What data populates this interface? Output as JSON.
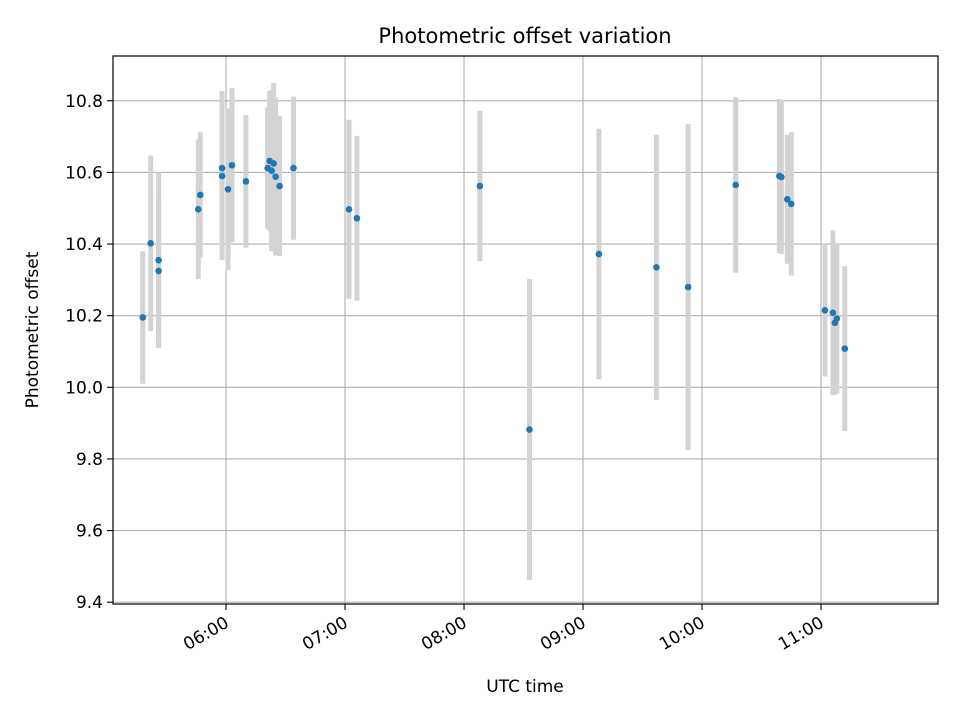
{
  "chart_data": {
    "type": "scatter",
    "title": "Photometric offset variation",
    "xlabel": "UTC time",
    "ylabel": "Photometric offset",
    "x_unit": "UTC time (HH:MM)",
    "xlim": [
      "05:03",
      "11:59"
    ],
    "ylim": [
      9.395,
      10.925
    ],
    "x_ticks": [
      "06:00",
      "07:00",
      "08:00",
      "09:00",
      "10:00",
      "11:00"
    ],
    "y_ticks": [
      "9.4",
      "9.6",
      "9.8",
      "10.0",
      "10.2",
      "10.4",
      "10.6",
      "10.8"
    ],
    "grid": true,
    "marker_color": "#1f77b4",
    "errorbar_color": "#d3d3d3",
    "series": [
      {
        "points": [
          {
            "x": "05:18",
            "y": 10.195,
            "err": 0.185
          },
          {
            "x": "05:22",
            "y": 10.402,
            "err": 0.245
          },
          {
            "x": "05:26",
            "y": 10.355,
            "err": 0.245
          },
          {
            "x": "05:26",
            "y": 10.325,
            "err": 0.21
          },
          {
            "x": "05:46",
            "y": 10.497,
            "err": 0.195
          },
          {
            "x": "05:47",
            "y": 10.537,
            "err": 0.175
          },
          {
            "x": "05:58",
            "y": 10.59,
            "err": 0.235
          },
          {
            "x": "05:58",
            "y": 10.612,
            "err": 0.215
          },
          {
            "x": "06:01",
            "y": 10.553,
            "err": 0.225
          },
          {
            "x": "06:03",
            "y": 10.62,
            "err": 0.215
          },
          {
            "x": "06:10",
            "y": 10.575,
            "err": 0.185
          },
          {
            "x": "06:21",
            "y": 10.612,
            "err": 0.17
          },
          {
            "x": "06:22",
            "y": 10.632,
            "err": 0.195
          },
          {
            "x": "06:23",
            "y": 10.605,
            "err": 0.225
          },
          {
            "x": "06:24",
            "y": 10.625,
            "err": 0.225
          },
          {
            "x": "06:25",
            "y": 10.588,
            "err": 0.22
          },
          {
            "x": "06:27",
            "y": 10.562,
            "err": 0.195
          },
          {
            "x": "06:34",
            "y": 10.612,
            "err": 0.2
          },
          {
            "x": "07:02",
            "y": 10.497,
            "err": 0.25
          },
          {
            "x": "07:06",
            "y": 10.472,
            "err": 0.23
          },
          {
            "x": "08:08",
            "y": 10.562,
            "err": 0.21
          },
          {
            "x": "08:33",
            "y": 9.882,
            "err": 0.42
          },
          {
            "x": "09:08",
            "y": 10.372,
            "err": 0.35
          },
          {
            "x": "09:37",
            "y": 10.335,
            "err": 0.37
          },
          {
            "x": "09:53",
            "y": 10.28,
            "err": 0.455
          },
          {
            "x": "10:17",
            "y": 10.565,
            "err": 0.245
          },
          {
            "x": "10:39",
            "y": 10.59,
            "err": 0.215
          },
          {
            "x": "10:40",
            "y": 10.587,
            "err": 0.215
          },
          {
            "x": "10:43",
            "y": 10.525,
            "err": 0.18
          },
          {
            "x": "10:45",
            "y": 10.512,
            "err": 0.2
          },
          {
            "x": "11:02",
            "y": 10.215,
            "err": 0.185
          },
          {
            "x": "11:06",
            "y": 10.208,
            "err": 0.23
          },
          {
            "x": "11:07",
            "y": 10.18,
            "err": 0.2
          },
          {
            "x": "11:08",
            "y": 10.192,
            "err": 0.21
          },
          {
            "x": "11:12",
            "y": 10.108,
            "err": 0.23
          }
        ]
      }
    ]
  }
}
